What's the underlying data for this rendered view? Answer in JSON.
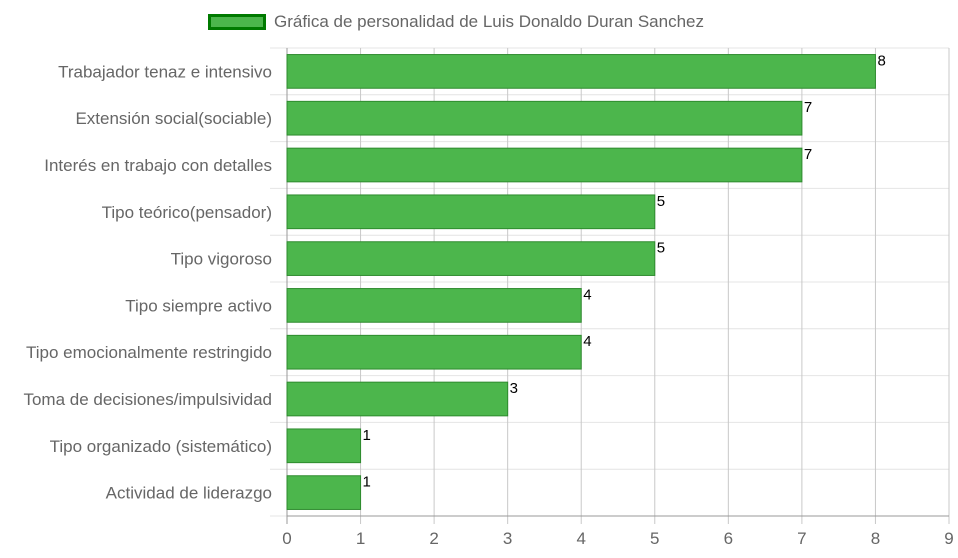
{
  "chart_data": {
    "type": "bar",
    "orientation": "horizontal",
    "legend": {
      "label": "Gráfica de personalidad de Luis Donaldo Duran Sanchez",
      "position": "top"
    },
    "categories": [
      "Trabajador tenaz e intensivo",
      "Extensión social(sociable)",
      "Interés en trabajo con detalles",
      "Tipo teórico(pensador)",
      "Tipo vigoroso",
      "Tipo siempre activo",
      "Tipo emocionalmente restringido",
      "Toma de decisiones/impulsividad",
      "Tipo organizado (sistemático)",
      "Actividad de liderazgo"
    ],
    "values": [
      8,
      7,
      7,
      5,
      5,
      4,
      4,
      3,
      1,
      1
    ],
    "xlim": [
      0,
      9
    ],
    "xticks": [
      "0",
      "1",
      "2",
      "3",
      "4",
      "5",
      "6",
      "7",
      "8",
      "9"
    ],
    "grid": true,
    "data_labels": true,
    "colors": {
      "bar_fill": "#4cb64c",
      "bar_border": "#2e8b2e",
      "legend_fill": "#4cb64c",
      "legend_border": "#007a00",
      "grid": "#c8c8c8",
      "tick_text": "#666666",
      "label_text": "#666666",
      "value_text": "#000000"
    }
  }
}
